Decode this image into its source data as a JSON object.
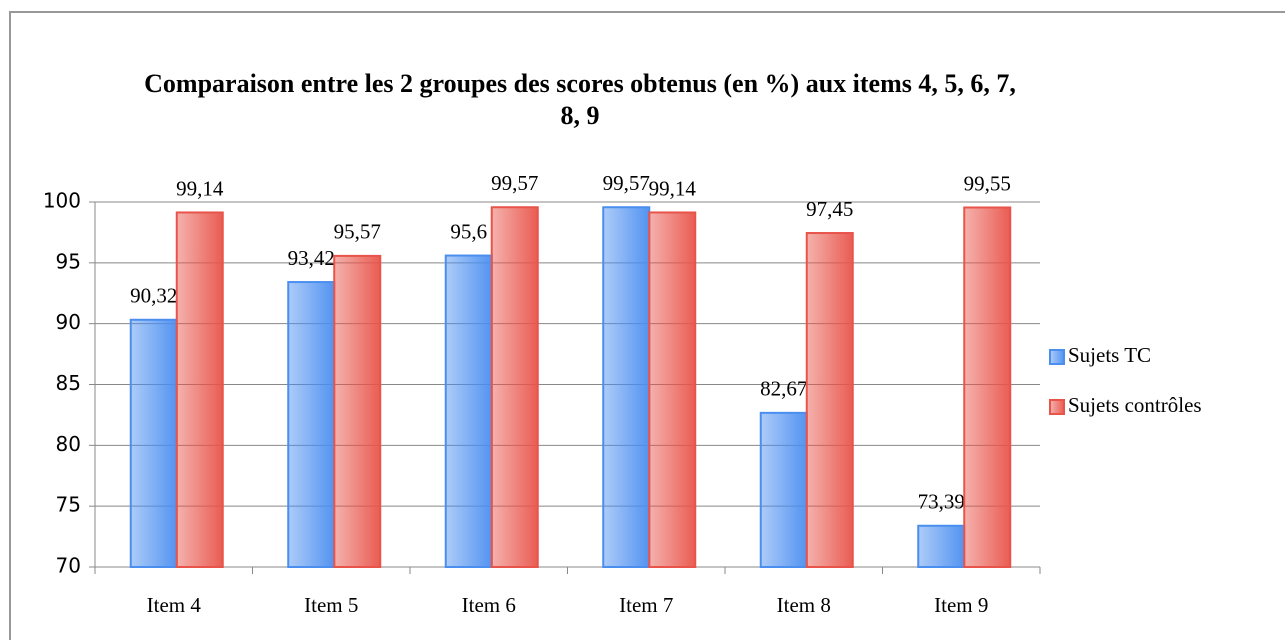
{
  "chart_data": {
    "type": "bar",
    "title": "Comparaison entre les 2 groupes des scores obtenus (en %) aux items 4, 5, 6, 7, 8, 9",
    "categories": [
      "Item 4",
      "Item 5",
      "Item 6",
      "Item 7",
      "Item 8",
      "Item 9"
    ],
    "series": [
      {
        "name": "Sujets TC",
        "color": "#4a8ef0",
        "values": [
          90.32,
          93.42,
          95.6,
          99.57,
          82.67,
          73.39
        ],
        "value_labels": [
          "90,32",
          "93,42",
          "95,6",
          "99,57",
          "82,67",
          "73,39"
        ]
      },
      {
        "name": "Sujets contrôles",
        "color": "#e8544a",
        "values": [
          99.14,
          95.57,
          99.57,
          99.14,
          97.45,
          99.55
        ],
        "value_labels": [
          "99,14",
          "95,57",
          "99,57",
          "99,14",
          "97,45",
          "99,55"
        ]
      }
    ],
    "ylim": [
      70,
      100
    ],
    "yticks": [
      70,
      75,
      80,
      85,
      90,
      95,
      100
    ],
    "grid": true,
    "legend": "right"
  }
}
